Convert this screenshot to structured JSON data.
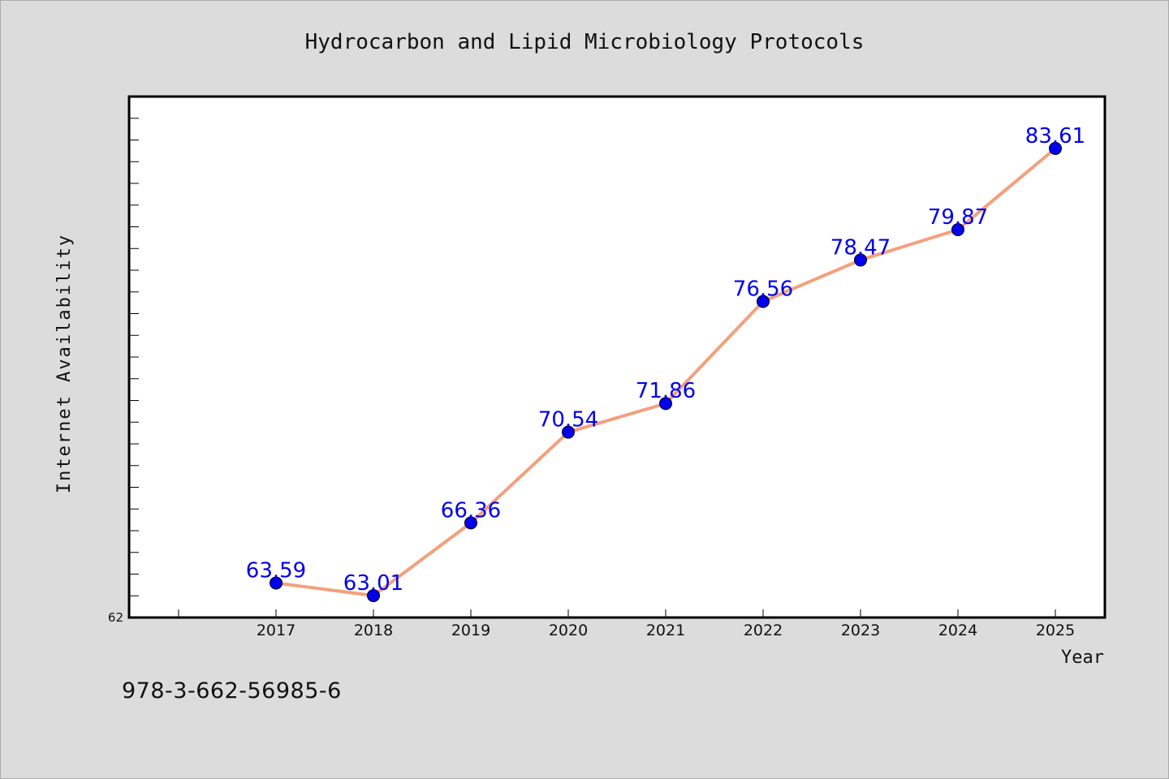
{
  "colors": {
    "background": "#dcdcdc",
    "plot_background": "#ffffff",
    "line": "#f4a07c",
    "marker": "#0000ee",
    "data_label": "#0000ee",
    "text": "#111111"
  },
  "footer": {
    "isbn": "978-3-662-56985-6"
  },
  "chart_data": {
    "type": "line",
    "title": "Hydrocarbon and Lipid Microbiology Protocols",
    "xlabel": "Year",
    "ylabel": "Internet Availability",
    "categories": [
      "2017",
      "2018",
      "2019",
      "2020",
      "2021",
      "2022",
      "2023",
      "2024",
      "2025"
    ],
    "series": [
      {
        "values": [
          63.59,
          63.01,
          66.36,
          70.54,
          71.86,
          76.56,
          78.47,
          79.87,
          83.61
        ],
        "data_labels": [
          "63.59",
          "63.01",
          "66.36",
          "70.54",
          "71.86",
          "76.56",
          "78.47",
          "79.87",
          "83.61"
        ]
      }
    ],
    "y_tick_label": "62",
    "ylim": [
      62,
      86
    ],
    "grid": false,
    "legend": "none"
  }
}
